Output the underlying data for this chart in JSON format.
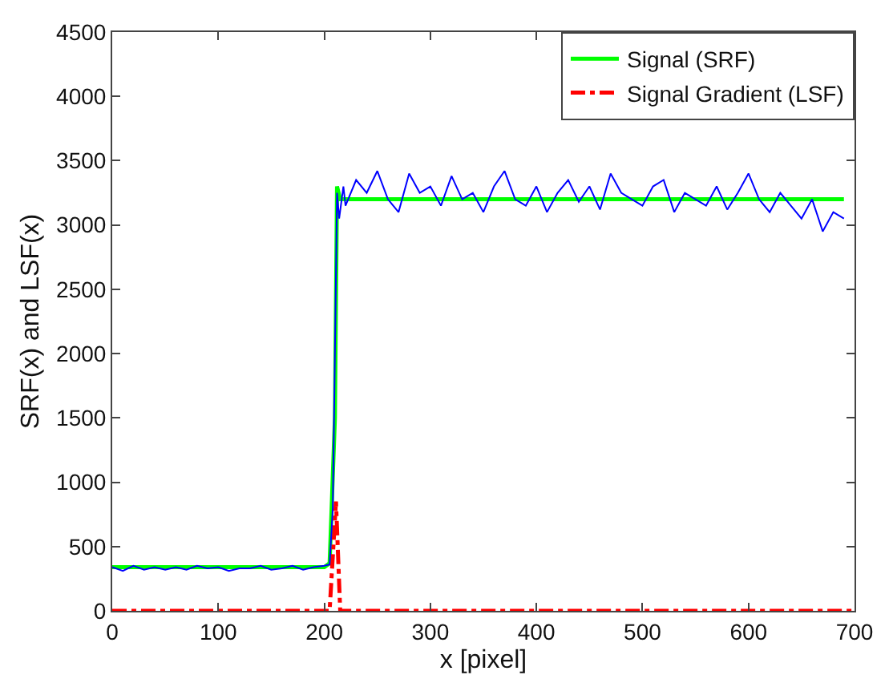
{
  "chart_data": {
    "type": "line",
    "xlabel": "x [pixel]",
    "ylabel": "SRF(x) and LSF(x)",
    "xlim": [
      0,
      700
    ],
    "xticks": [
      0,
      100,
      200,
      300,
      400,
      500,
      600,
      700
    ],
    "ylim": [
      0,
      4500
    ],
    "yticks": [
      0,
      500,
      1000,
      1500,
      2000,
      2500,
      3000,
      3500,
      4000,
      4500
    ],
    "legend": "top right",
    "marker": "none",
    "series": [
      {
        "color": "#0000ff",
        "line_style": "solid",
        "x": [
          0,
          10,
          20,
          30,
          40,
          50,
          60,
          70,
          80,
          90,
          100,
          110,
          120,
          130,
          140,
          150,
          160,
          170,
          180,
          190,
          200,
          205,
          208,
          210,
          212,
          214,
          218,
          220,
          230,
          240,
          250,
          260,
          270,
          280,
          290,
          300,
          310,
          320,
          330,
          340,
          350,
          360,
          370,
          380,
          390,
          400,
          410,
          420,
          430,
          440,
          450,
          460,
          470,
          480,
          490,
          500,
          510,
          520,
          530,
          540,
          550,
          560,
          570,
          580,
          590,
          600,
          610,
          620,
          630,
          640,
          650,
          660,
          670,
          680,
          690
        ],
        "values": [
          340,
          310,
          350,
          320,
          340,
          320,
          340,
          320,
          350,
          330,
          340,
          310,
          330,
          330,
          350,
          320,
          330,
          350,
          320,
          340,
          350,
          360,
          800,
          2000,
          3250,
          3050,
          3300,
          3150,
          3350,
          3250,
          3420,
          3200,
          3100,
          3400,
          3250,
          3300,
          3150,
          3380,
          3200,
          3250,
          3100,
          3300,
          3420,
          3200,
          3150,
          3300,
          3100,
          3250,
          3350,
          3180,
          3300,
          3120,
          3400,
          3250,
          3200,
          3150,
          3300,
          3350,
          3100,
          3250,
          3200,
          3150,
          3300,
          3120,
          3250,
          3400,
          3200,
          3100,
          3250,
          3150,
          3050,
          3200,
          2950,
          3100,
          3050
        ]
      },
      {
        "name": "Signal (SRF)",
        "color": "#00ff00",
        "line_style": "solid",
        "x": [
          0,
          200,
          205,
          210,
          212,
          215,
          690
        ],
        "values": [
          340,
          340,
          370,
          1500,
          3300,
          3200,
          3200
        ]
      },
      {
        "name": "Signal Gradient (LSF)",
        "color": "#ff0000",
        "line_style": "dashdot",
        "x": [
          0,
          205,
          211,
          215,
          700
        ],
        "values": [
          0,
          0,
          850,
          0,
          0
        ]
      }
    ]
  }
}
